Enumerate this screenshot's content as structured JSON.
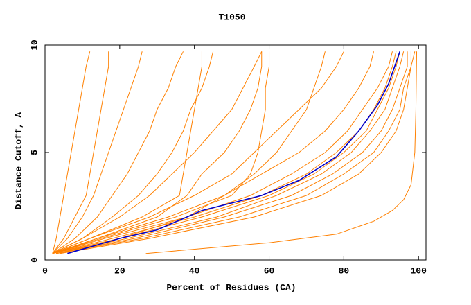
{
  "chart_data": {
    "type": "line",
    "title": "T1050",
    "xlabel": "Percent of Residues (CA)",
    "ylabel": "Distance Cutoff, A",
    "xlim": [
      0,
      102
    ],
    "ylim": [
      0,
      10
    ],
    "xticks": [
      0,
      20,
      40,
      60,
      80,
      100
    ],
    "yticks": [
      0,
      5,
      10
    ],
    "grid": false,
    "series": [
      {
        "color": "#ff8000",
        "x": [
          2,
          3,
          4,
          5,
          6,
          7,
          8,
          9,
          10,
          11,
          12
        ],
        "values": [
          0.3,
          1,
          2,
          3,
          4,
          5,
          6,
          7,
          8,
          9,
          9.7
        ]
      },
      {
        "color": "#ff8000",
        "x": [
          2,
          5,
          8,
          11,
          12,
          13,
          14,
          15,
          16,
          17,
          17
        ],
        "values": [
          0.3,
          1,
          2,
          3,
          4,
          5,
          6,
          7,
          8,
          9,
          9.7
        ]
      },
      {
        "color": "#ff8000",
        "x": [
          2,
          6,
          10,
          13,
          15,
          17,
          19,
          21,
          23,
          25,
          26
        ],
        "values": [
          0.3,
          1,
          2,
          3,
          4,
          5,
          6,
          7,
          8,
          9,
          9.7
        ]
      },
      {
        "color": "#ff8000",
        "x": [
          2,
          8,
          14,
          18,
          22,
          25,
          28,
          30,
          33,
          35,
          37
        ],
        "values": [
          0.3,
          1,
          2,
          3,
          4,
          5,
          6,
          7,
          8,
          9,
          9.7
        ]
      },
      {
        "color": "#ff8000",
        "x": [
          2,
          10,
          18,
          25,
          30,
          34,
          37,
          39,
          42,
          44,
          45
        ],
        "values": [
          0.3,
          1,
          2,
          3,
          4,
          5,
          6,
          7,
          8,
          9,
          9.7
        ]
      },
      {
        "color": "#ff8000",
        "x": [
          2,
          10,
          20,
          28,
          34,
          40,
          45,
          50,
          53,
          56,
          58
        ],
        "values": [
          0.3,
          1,
          2,
          3,
          4,
          5,
          6,
          7,
          8,
          9,
          9.7
        ]
      },
      {
        "color": "#ff8000",
        "x": [
          2,
          12,
          26,
          36,
          37,
          38,
          39,
          40,
          41,
          42,
          42
        ],
        "values": [
          0.3,
          1,
          2,
          3,
          4,
          5,
          6,
          7,
          8,
          9,
          9.7
        ]
      },
      {
        "color": "#ff8000",
        "x": [
          2,
          14,
          30,
          38,
          42,
          48,
          52,
          55,
          57,
          58,
          58
        ],
        "values": [
          0.3,
          1,
          2,
          3,
          4,
          5,
          6,
          7,
          8,
          9,
          9.7
        ]
      },
      {
        "color": "#ff8000",
        "x": [
          2,
          15,
          35,
          50,
          55,
          57,
          58,
          59,
          59,
          60,
          60
        ],
        "values": [
          0.3,
          1,
          2,
          3,
          4,
          5,
          6,
          7,
          8,
          9,
          9.7
        ]
      },
      {
        "color": "#ff8000",
        "x": [
          2,
          14,
          33,
          48,
          58,
          68,
          75,
          80,
          84,
          87,
          88
        ],
        "values": [
          0.3,
          1,
          2,
          3,
          4,
          5,
          6,
          7,
          8,
          9,
          9.7
        ]
      },
      {
        "color": "#ff8000",
        "x": [
          2,
          16,
          38,
          55,
          66,
          75,
          81,
          85,
          89,
          92,
          93
        ],
        "values": [
          0.3,
          1,
          2,
          3,
          4,
          5,
          6,
          7,
          8,
          9,
          9.7
        ]
      },
      {
        "color": "#ff8000",
        "x": [
          3,
          20,
          42,
          60,
          72,
          80,
          86,
          89,
          92,
          94,
          95
        ],
        "values": [
          0.3,
          1,
          2,
          3,
          4,
          5,
          6,
          7,
          8,
          9,
          9.7
        ]
      },
      {
        "color": "#ff8000",
        "x": [
          3,
          22,
          46,
          62,
          74,
          82,
          87,
          91,
          93,
          95,
          96
        ],
        "values": [
          0.3,
          1,
          2,
          3,
          4,
          5,
          6,
          7,
          8,
          9,
          9.7
        ]
      },
      {
        "color": "#ff8000",
        "x": [
          3,
          24,
          48,
          66,
          77,
          85,
          90,
          93,
          95,
          97,
          97
        ],
        "values": [
          0.3,
          1,
          2,
          3,
          4,
          5,
          6,
          7,
          8,
          9,
          9.7
        ]
      },
      {
        "color": "#ff8000",
        "x": [
          3,
          26,
          52,
          70,
          80,
          88,
          92,
          95,
          96,
          98,
          98
        ],
        "values": [
          0.3,
          1,
          2,
          3,
          4,
          5,
          6,
          7,
          8,
          9,
          9.7
        ]
      },
      {
        "color": "#ff8000",
        "x": [
          4,
          28,
          56,
          74,
          84,
          90,
          94,
          96,
          97,
          98,
          99
        ],
        "values": [
          0.3,
          1,
          2,
          3,
          4,
          5,
          6,
          7,
          8,
          9,
          9.7
        ]
      },
      {
        "color": "#ff8000",
        "x": [
          2,
          18,
          40,
          58,
          70,
          78,
          84,
          88,
          91,
          93,
          94
        ],
        "values": [
          0.3,
          1,
          2,
          3,
          4,
          5,
          6,
          7,
          8,
          9,
          9.7
        ]
      },
      {
        "color": "#ff8000",
        "x": [
          2,
          12,
          28,
          40,
          50,
          56,
          62,
          68,
          74,
          78,
          80
        ],
        "values": [
          0.3,
          1,
          2,
          3,
          4,
          5,
          6,
          7,
          8,
          9,
          9.7
        ]
      },
      {
        "color": "#ff8000",
        "x": [
          2,
          20,
          38,
          48,
          56,
          62,
          66,
          70,
          72,
          74,
          75
        ],
        "values": [
          0.3,
          1,
          2,
          3,
          4,
          5,
          6,
          7,
          8,
          9,
          9.7
        ]
      },
      {
        "color": "#ff8000",
        "x": [
          27,
          60,
          78,
          88,
          93,
          96,
          98,
          99,
          99.3,
          99.5
        ],
        "values": [
          0.3,
          0.8,
          1.2,
          1.8,
          2.3,
          2.8,
          3.5,
          5,
          7,
          9.7
        ]
      },
      {
        "color": "#0000cc",
        "x": [
          6,
          20,
          30,
          42,
          58,
          68,
          78,
          84,
          89,
          92,
          94,
          95
        ],
        "values": [
          0.3,
          1.0,
          1.4,
          2.3,
          3.0,
          3.7,
          4.8,
          6,
          7.2,
          8.2,
          9.2,
          9.7
        ]
      }
    ]
  }
}
